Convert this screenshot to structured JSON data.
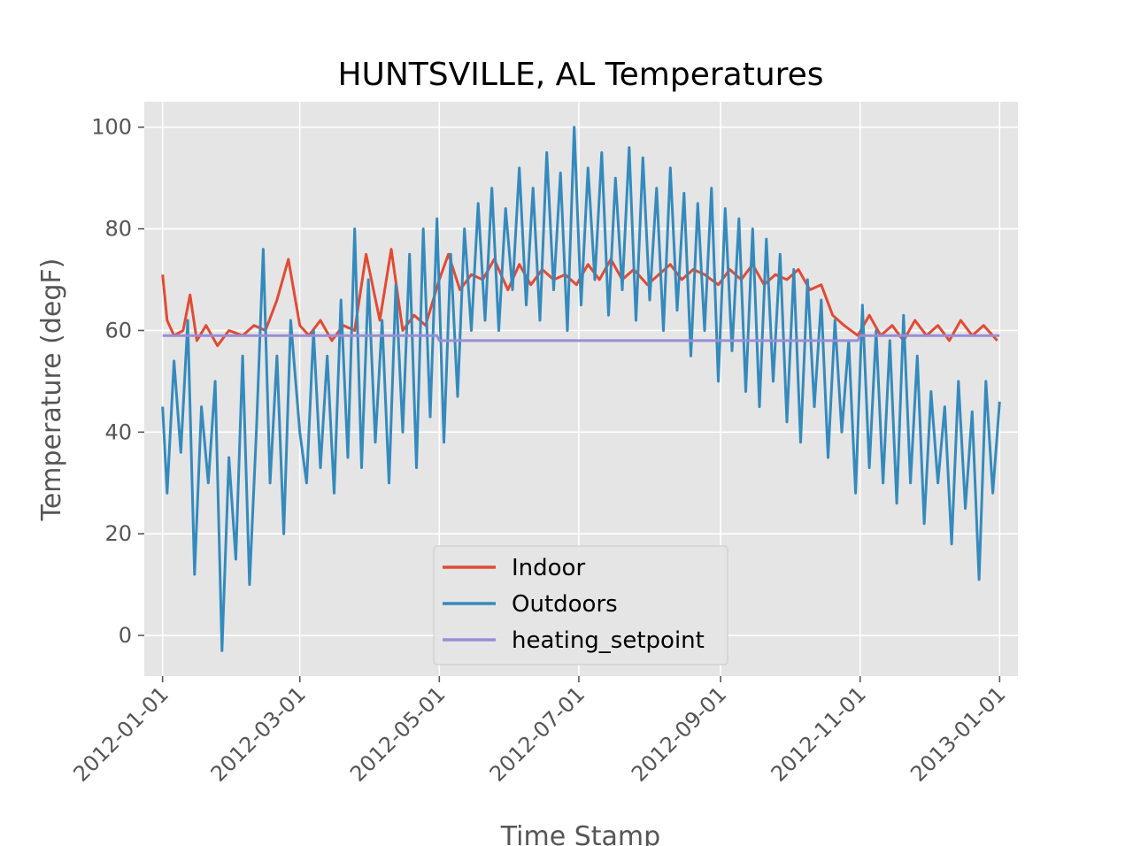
{
  "chart_data": {
    "type": "line",
    "title": "HUNTSVILLE, AL Temperatures",
    "xlabel": "Time Stamp",
    "ylabel": "Temperature (degF)",
    "xlim": [
      "2011-12-24",
      "2013-01-09"
    ],
    "ylim": [
      -8,
      105
    ],
    "x_ticks": [
      "2012-01-01",
      "2012-03-01",
      "2012-05-01",
      "2012-07-01",
      "2012-09-01",
      "2012-11-01",
      "2013-01-01"
    ],
    "y_ticks": [
      0,
      20,
      40,
      60,
      80,
      100
    ],
    "grid": true,
    "legend_position": "lower center",
    "colors": {
      "Indoor": "#E24A33",
      "Outdoors": "#348ABD",
      "heating_setpoint": "#988ED5",
      "background": "#E5E5E5",
      "grid": "#FFFFFF"
    },
    "series": [
      {
        "name": "Indoor",
        "x": [
          "2012-01-01",
          "2012-01-03",
          "2012-01-06",
          "2012-01-10",
          "2012-01-13",
          "2012-01-16",
          "2012-01-20",
          "2012-01-25",
          "2012-01-30",
          "2012-02-05",
          "2012-02-10",
          "2012-02-15",
          "2012-02-20",
          "2012-02-25",
          "2012-03-01",
          "2012-03-05",
          "2012-03-10",
          "2012-03-15",
          "2012-03-20",
          "2012-03-25",
          "2012-03-30",
          "2012-04-05",
          "2012-04-10",
          "2012-04-15",
          "2012-04-20",
          "2012-04-25",
          "2012-05-01",
          "2012-05-05",
          "2012-05-10",
          "2012-05-15",
          "2012-05-20",
          "2012-05-25",
          "2012-05-31",
          "2012-06-05",
          "2012-06-10",
          "2012-06-15",
          "2012-06-20",
          "2012-06-25",
          "2012-06-30",
          "2012-07-05",
          "2012-07-10",
          "2012-07-15",
          "2012-07-20",
          "2012-07-25",
          "2012-07-31",
          "2012-08-05",
          "2012-08-10",
          "2012-08-15",
          "2012-08-20",
          "2012-08-25",
          "2012-08-31",
          "2012-09-05",
          "2012-09-10",
          "2012-09-15",
          "2012-09-20",
          "2012-09-25",
          "2012-09-30",
          "2012-10-05",
          "2012-10-10",
          "2012-10-15",
          "2012-10-20",
          "2012-10-25",
          "2012-10-31",
          "2012-11-05",
          "2012-11-10",
          "2012-11-15",
          "2012-11-20",
          "2012-11-25",
          "2012-11-30",
          "2012-12-05",
          "2012-12-10",
          "2012-12-15",
          "2012-12-20",
          "2012-12-25",
          "2012-12-31"
        ],
        "values": [
          71,
          62,
          59,
          60,
          67,
          58,
          61,
          57,
          60,
          59,
          61,
          60,
          66,
          74,
          61,
          59,
          62,
          58,
          61,
          60,
          75,
          62,
          76,
          60,
          63,
          61,
          70,
          75,
          68,
          71,
          70,
          74,
          68,
          73,
          69,
          72,
          70,
          71,
          69,
          73,
          70,
          74,
          70,
          72,
          69,
          71,
          73,
          70,
          72,
          71,
          69,
          72,
          70,
          73,
          69,
          71,
          70,
          72,
          68,
          69,
          63,
          61,
          59,
          63,
          59,
          61,
          58,
          62,
          59,
          61,
          58,
          62,
          59,
          61,
          58
        ]
      },
      {
        "name": "Outdoors",
        "x": [
          "2012-01-01",
          "2012-01-03",
          "2012-01-06",
          "2012-01-09",
          "2012-01-12",
          "2012-01-15",
          "2012-01-18",
          "2012-01-21",
          "2012-01-24",
          "2012-01-27",
          "2012-01-30",
          "2012-02-02",
          "2012-02-05",
          "2012-02-08",
          "2012-02-11",
          "2012-02-14",
          "2012-02-17",
          "2012-02-20",
          "2012-02-23",
          "2012-02-26",
          "2012-03-01",
          "2012-03-04",
          "2012-03-07",
          "2012-03-10",
          "2012-03-13",
          "2012-03-16",
          "2012-03-19",
          "2012-03-22",
          "2012-03-25",
          "2012-03-28",
          "2012-03-31",
          "2012-04-03",
          "2012-04-06",
          "2012-04-09",
          "2012-04-12",
          "2012-04-15",
          "2012-04-18",
          "2012-04-21",
          "2012-04-24",
          "2012-04-27",
          "2012-04-30",
          "2012-05-03",
          "2012-05-06",
          "2012-05-09",
          "2012-05-12",
          "2012-05-15",
          "2012-05-18",
          "2012-05-21",
          "2012-05-24",
          "2012-05-27",
          "2012-05-30",
          "2012-06-02",
          "2012-06-05",
          "2012-06-08",
          "2012-06-11",
          "2012-06-14",
          "2012-06-17",
          "2012-06-20",
          "2012-06-23",
          "2012-06-26",
          "2012-06-29",
          "2012-07-02",
          "2012-07-05",
          "2012-07-08",
          "2012-07-11",
          "2012-07-14",
          "2012-07-17",
          "2012-07-20",
          "2012-07-23",
          "2012-07-26",
          "2012-07-29",
          "2012-08-01",
          "2012-08-04",
          "2012-08-07",
          "2012-08-10",
          "2012-08-13",
          "2012-08-16",
          "2012-08-19",
          "2012-08-22",
          "2012-08-25",
          "2012-08-28",
          "2012-08-31",
          "2012-09-03",
          "2012-09-06",
          "2012-09-09",
          "2012-09-12",
          "2012-09-15",
          "2012-09-18",
          "2012-09-21",
          "2012-09-24",
          "2012-09-27",
          "2012-09-30",
          "2012-10-03",
          "2012-10-06",
          "2012-10-09",
          "2012-10-12",
          "2012-10-15",
          "2012-10-18",
          "2012-10-21",
          "2012-10-24",
          "2012-10-27",
          "2012-10-30",
          "2012-11-02",
          "2012-11-05",
          "2012-11-08",
          "2012-11-11",
          "2012-11-14",
          "2012-11-17",
          "2012-11-20",
          "2012-11-23",
          "2012-11-26",
          "2012-11-29",
          "2012-12-02",
          "2012-12-05",
          "2012-12-08",
          "2012-12-11",
          "2012-12-14",
          "2012-12-17",
          "2012-12-20",
          "2012-12-23",
          "2012-12-26",
          "2012-12-29",
          "2013-01-01"
        ],
        "values": [
          45,
          28,
          54,
          36,
          62,
          12,
          45,
          30,
          50,
          -3,
          35,
          15,
          55,
          10,
          40,
          76,
          30,
          55,
          20,
          62,
          40,
          30,
          60,
          33,
          55,
          28,
          66,
          35,
          80,
          33,
          70,
          38,
          62,
          30,
          69,
          40,
          75,
          33,
          80,
          43,
          82,
          38,
          75,
          47,
          80,
          60,
          85,
          62,
          88,
          60,
          84,
          68,
          92,
          65,
          88,
          62,
          95,
          68,
          91,
          60,
          100,
          65,
          92,
          70,
          95,
          63,
          90,
          68,
          96,
          62,
          94,
          66,
          88,
          60,
          92,
          64,
          87,
          55,
          85,
          60,
          88,
          50,
          84,
          56,
          82,
          48,
          80,
          45,
          78,
          50,
          75,
          42,
          72,
          38,
          70,
          45,
          66,
          35,
          62,
          40,
          58,
          28,
          65,
          33,
          60,
          30,
          58,
          26,
          63,
          30,
          55,
          22,
          48,
          30,
          45,
          18,
          50,
          25,
          44,
          11,
          50,
          28,
          46
        ]
      },
      {
        "name": "heating_setpoint",
        "x": [
          "2012-01-01",
          "2012-04-30",
          "2012-05-01",
          "2012-10-31",
          "2012-11-01",
          "2013-01-01"
        ],
        "values": [
          59,
          59,
          58,
          58,
          59,
          59
        ]
      }
    ]
  }
}
